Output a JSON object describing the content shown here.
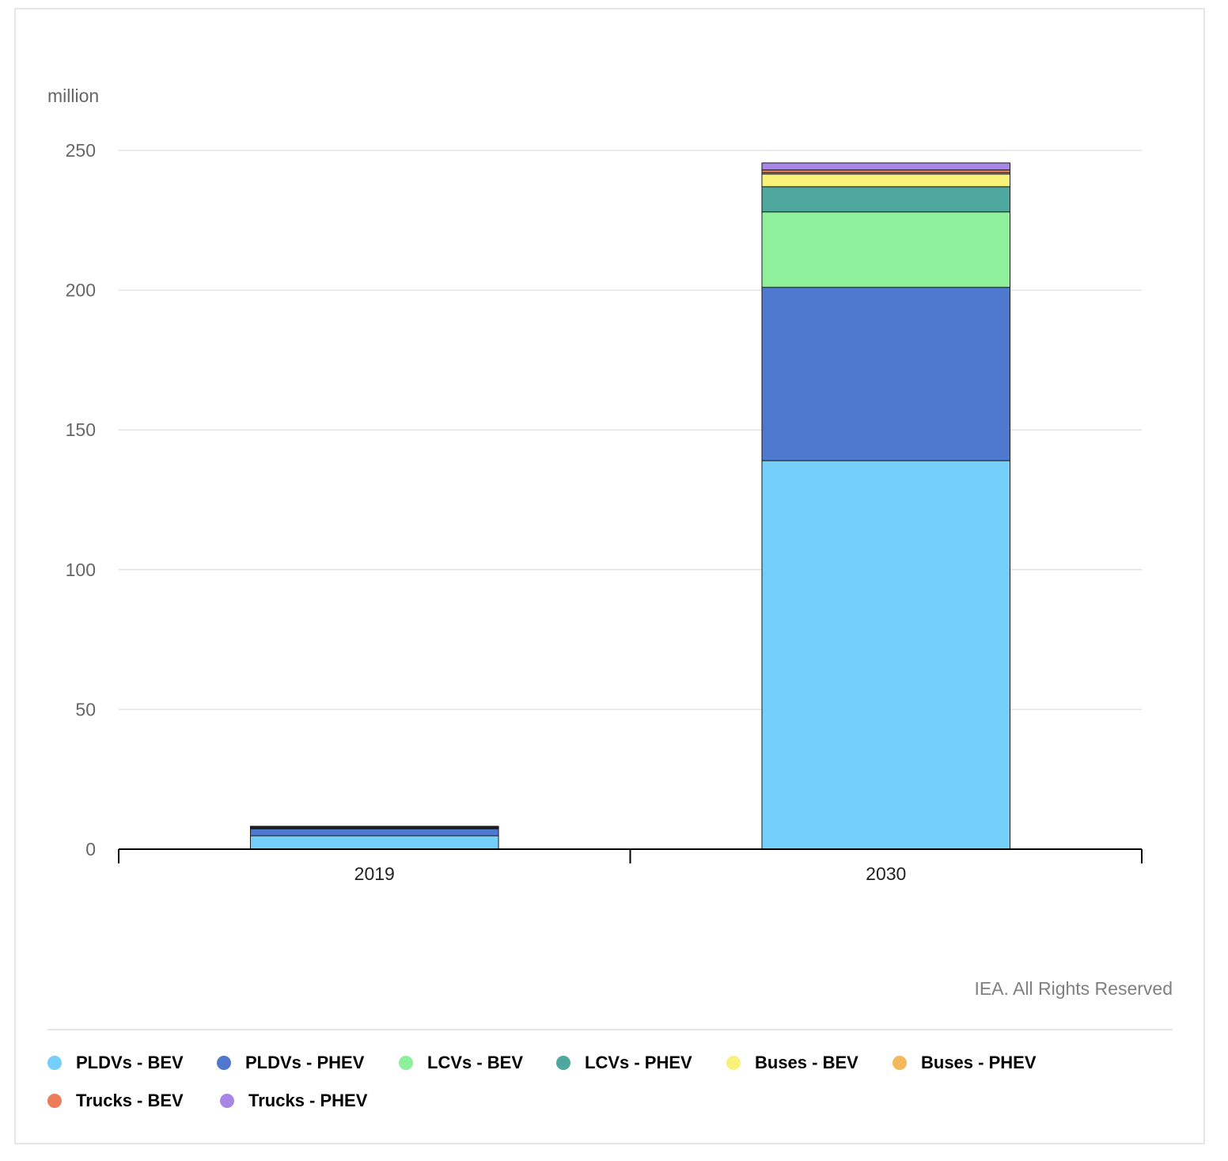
{
  "chart_data": {
    "type": "bar",
    "stacked": true,
    "unit_label": "million",
    "categories": [
      "2019",
      "2030"
    ],
    "ylim": [
      0,
      250
    ],
    "yticks": [
      0,
      50,
      100,
      150,
      200,
      250
    ],
    "grid": true,
    "legend_position": "bottom",
    "series": [
      {
        "name": "PLDVs - BEV",
        "color": "#74cffa",
        "values": [
          4.8,
          139
        ]
      },
      {
        "name": "PLDVs - PHEV",
        "color": "#4e79cf",
        "values": [
          2.5,
          62
        ]
      },
      {
        "name": "LCVs - BEV",
        "color": "#8ef09a",
        "values": [
          0.3,
          27
        ]
      },
      {
        "name": "LCVs - PHEV",
        "color": "#4ea89d",
        "values": [
          0.1,
          9
        ]
      },
      {
        "name": "Buses - BEV",
        "color": "#f9f27a",
        "values": [
          0.4,
          4.5
        ]
      },
      {
        "name": "Buses - PHEV",
        "color": "#f5b95d",
        "values": [
          0.05,
          0.5
        ]
      },
      {
        "name": "Trucks - BEV",
        "color": "#ec7c5a",
        "values": [
          0.02,
          1
        ]
      },
      {
        "name": "Trucks - PHEV",
        "color": "#a886e6",
        "values": [
          0.01,
          2.5
        ]
      }
    ],
    "credit": "IEA. All Rights Reserved"
  }
}
